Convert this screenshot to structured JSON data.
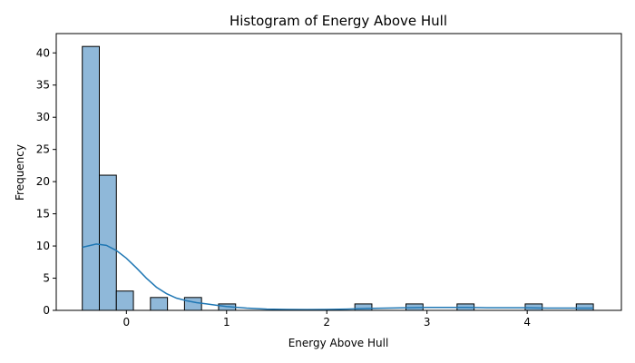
{
  "chart_data": {
    "type": "bar",
    "title": "Histogram of Energy Above Hull",
    "xlabel": "Energy Above Hull",
    "ylabel": "Frequency",
    "xlim": [
      -0.7,
      4.94
    ],
    "ylim": [
      0,
      43
    ],
    "x_ticks": [
      0,
      1,
      2,
      3,
      4
    ],
    "y_ticks": [
      0,
      5,
      10,
      15,
      20,
      25,
      30,
      35,
      40
    ],
    "bin_edges": [
      -0.44,
      -0.27,
      -0.1,
      0.07,
      0.24,
      0.41,
      0.58,
      0.75,
      0.92,
      1.09,
      1.26,
      1.43,
      1.6,
      1.77,
      1.94,
      2.11,
      2.28,
      2.45,
      2.62,
      2.79,
      2.96,
      3.13,
      3.3,
      3.47,
      3.64,
      3.81,
      3.98,
      4.15,
      4.32,
      4.49,
      4.66
    ],
    "counts": [
      41,
      21,
      3,
      0,
      2,
      0,
      2,
      0,
      1,
      0,
      0,
      0,
      0,
      0,
      0,
      0,
      1,
      0,
      0,
      1,
      0,
      0,
      1,
      0,
      0,
      0,
      1,
      0,
      0,
      1
    ],
    "kde": {
      "x": [
        -0.44,
        -0.3,
        -0.2,
        -0.1,
        0.0,
        0.1,
        0.2,
        0.3,
        0.4,
        0.5,
        0.6,
        0.7,
        0.8,
        0.9,
        1.0,
        1.2,
        1.4,
        1.6,
        1.8,
        2.0,
        2.2,
        2.4,
        2.6,
        2.8,
        3.0,
        3.2,
        3.4,
        3.6,
        3.8,
        4.0,
        4.2,
        4.4,
        4.6,
        4.66
      ],
      "y": [
        9.8,
        10.3,
        10.1,
        9.3,
        8.1,
        6.6,
        5.0,
        3.6,
        2.6,
        1.9,
        1.5,
        1.2,
        1.0,
        0.8,
        0.6,
        0.35,
        0.2,
        0.15,
        0.13,
        0.15,
        0.2,
        0.3,
        0.35,
        0.4,
        0.45,
        0.45,
        0.45,
        0.4,
        0.4,
        0.4,
        0.35,
        0.35,
        0.35,
        0.35
      ]
    },
    "bar_color": "#8fb8d9",
    "bar_edge_color": "#000000",
    "line_color": "#1f77b4",
    "grid": false,
    "legend": "none"
  }
}
